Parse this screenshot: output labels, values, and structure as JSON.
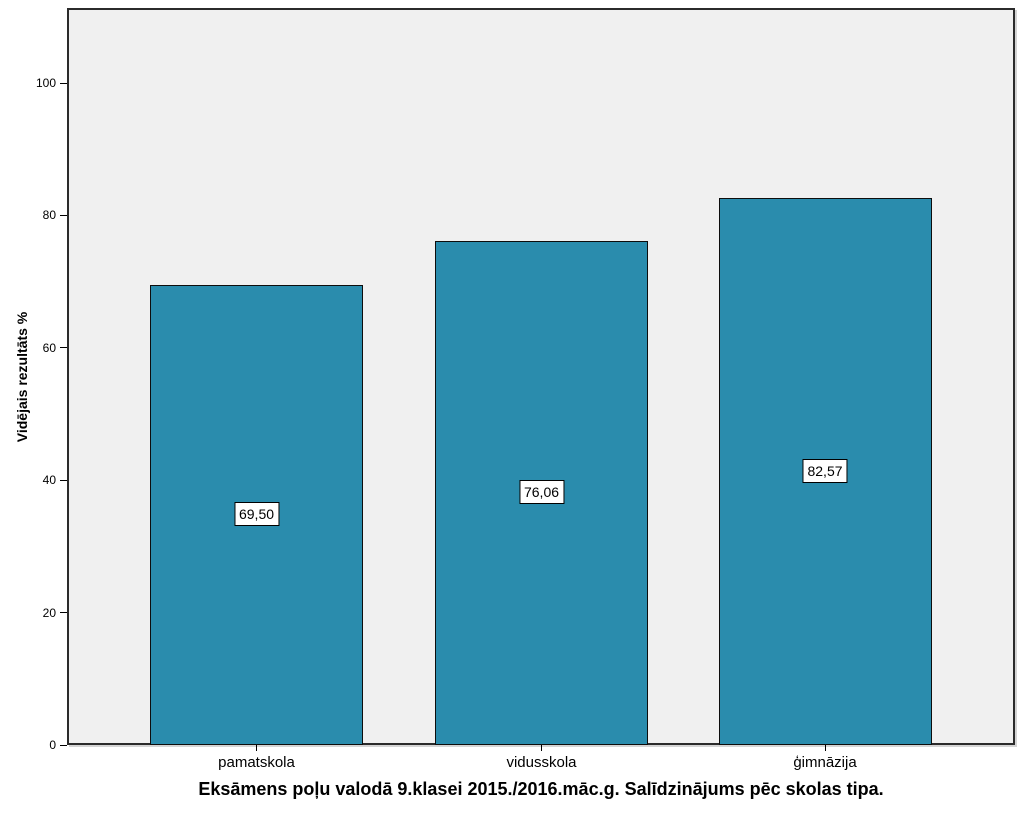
{
  "chart_data": {
    "type": "bar",
    "categories": [
      "pamatskola",
      "vidusskola",
      "ģimnāzija"
    ],
    "values": [
      69.5,
      76.06,
      82.57
    ],
    "value_labels": [
      "69,50",
      "76,06",
      "82,57"
    ],
    "title": "Eksāmens poļu valodā 9.klasei 2015./2016.māc.g. Salīdzinājums pēc skolas tipa.",
    "xlabel": "",
    "ylabel": "Vidējais rezultāts %",
    "ylim": [
      0,
      111.3
    ],
    "yticks": [
      0,
      20,
      40,
      60,
      80,
      100
    ],
    "grid": false,
    "legend": false,
    "value_label_style": "white box, black border, centered at mid-bar height",
    "colors": {
      "bar_fill": "#2A8CAD",
      "bar_border": "#0D0D0D",
      "plot_bg": "#F0F0F0",
      "frame_border": "#2B2B2B",
      "canvas_bg": "#FFFFFF",
      "text": "#000000",
      "label_box_bg": "#FFFFFF",
      "label_box_border": "#000000"
    }
  }
}
